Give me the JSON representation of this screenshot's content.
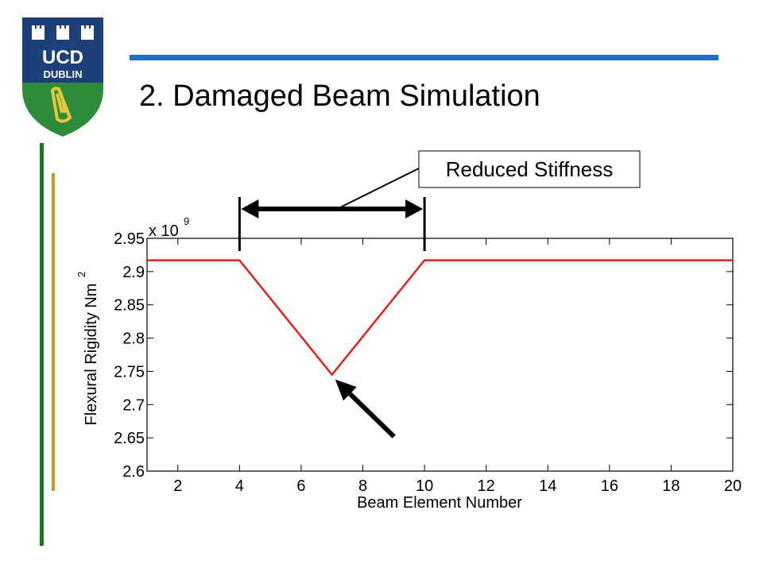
{
  "logo": {
    "text_line1": "UCD",
    "text_line2": "DUBLIN",
    "colors": {
      "shield_blue": "#1d3f7a",
      "shield_green": "#2e8b3a",
      "harp_gold": "#e8c53a"
    }
  },
  "slide": {
    "title": "2. Damaged Beam Simulation",
    "rule_color": "#1f6fc4",
    "side_bar_colors": [
      "#1a7a1a",
      "#c89a1a"
    ]
  },
  "annotation": {
    "callout_text": "Reduced Stiffness",
    "span_from_x": 4,
    "span_to_x": 10,
    "pointer_target": [
      7,
      2.745
    ]
  },
  "chart_data": {
    "type": "line",
    "title": "",
    "xlabel": "Beam Element Number",
    "ylabel": "Flexural Rigidity Nm",
    "ylabel_superscript": "2",
    "y_multiplier": "x 10",
    "y_multiplier_exponent": "9",
    "xlim": [
      1,
      20
    ],
    "ylim": [
      2.6,
      2.95
    ],
    "xticks": [
      2,
      4,
      6,
      8,
      10,
      12,
      14,
      16,
      18,
      20
    ],
    "xtick_labels": [
      "2",
      "4",
      "6",
      "8",
      "10",
      "12",
      "14",
      "16",
      "18",
      "20"
    ],
    "yticks": [
      2.6,
      2.65,
      2.7,
      2.75,
      2.8,
      2.85,
      2.9,
      2.95
    ],
    "ytick_labels": [
      "2.6",
      "2.65",
      "2.7",
      "2.75",
      "2.8",
      "2.85",
      "2.9",
      "2.95"
    ],
    "grid": false,
    "series": [
      {
        "color": "#e02020",
        "x": [
          1,
          4,
          7,
          10,
          20
        ],
        "y": [
          2.917,
          2.917,
          2.745,
          2.917,
          2.917
        ]
      }
    ]
  }
}
